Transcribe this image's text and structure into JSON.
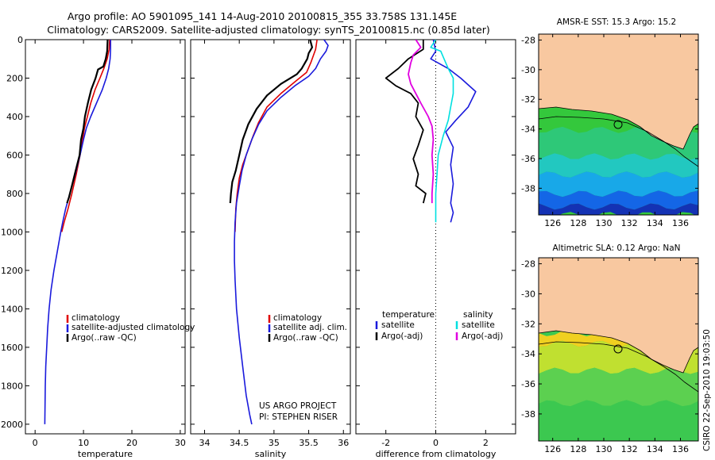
{
  "figure": {
    "title_line1": "Argo profile: AO 5901095_141 14-Aug-2010 20100815_355 33.758S 131.145E",
    "title_line2": "Climatology: CARS2009. Satellite-adjusted climatology: synTS_20100815.nc (0.85d later)",
    "project_line1": "US ARGO PROJECT",
    "project_line2": "PI: STEPHEN RISER",
    "credit": "CSIRO  22-Sep-2010 19:03:50"
  },
  "colors": {
    "climatology": "#e00000",
    "satellite": "#1a1adc",
    "argo": "#000000",
    "argo_sal_diff": "#e000e0",
    "sat_sal_diff": "#00e0e0",
    "land": "#f8c8a0"
  },
  "chart_data": [
    {
      "type": "line",
      "xlabel": "temperature",
      "ylabel": "",
      "xlim": [
        -2,
        31
      ],
      "ylim": [
        2050,
        0
      ],
      "x_ticks": [
        "0",
        "10",
        "20",
        "30"
      ],
      "y_ticks": [
        "0",
        "200",
        "400",
        "600",
        "800",
        "1000",
        "1200",
        "1400",
        "1600",
        "1800",
        "2000"
      ],
      "legend": [
        "climatology",
        "satellite-adjusted climatology",
        "Argo(..raw -QC)"
      ],
      "series": [
        {
          "name": "climatology",
          "points": [
            [
              15.4,
              0
            ],
            [
              15.3,
              50
            ],
            [
              14.9,
              100
            ],
            [
              14.2,
              150
            ],
            [
              13.4,
              200
            ],
            [
              12.4,
              260
            ],
            [
              11.5,
              330
            ],
            [
              10.8,
              400
            ],
            [
              10.2,
              460
            ],
            [
              9.8,
              520
            ],
            [
              9.3,
              600
            ],
            [
              8.5,
              700
            ],
            [
              7.6,
              800
            ],
            [
              6.8,
              880
            ],
            [
              6.0,
              950
            ],
            [
              5.5,
              1000
            ]
          ]
        },
        {
          "name": "satellite-adjusted climatology",
          "points": [
            [
              15.6,
              0
            ],
            [
              15.6,
              50
            ],
            [
              15.5,
              100
            ],
            [
              15.2,
              150
            ],
            [
              14.7,
              200
            ],
            [
              13.9,
              260
            ],
            [
              12.7,
              330
            ],
            [
              11.5,
              400
            ],
            [
              10.6,
              460
            ],
            [
              10.0,
              520
            ],
            [
              9.3,
              600
            ],
            [
              8.3,
              700
            ],
            [
              7.2,
              800
            ],
            [
              6.3,
              880
            ],
            [
              5.7,
              950
            ],
            [
              5.3,
              1000
            ],
            [
              4.6,
              1100
            ],
            [
              3.9,
              1200
            ],
            [
              3.3,
              1300
            ],
            [
              2.9,
              1400
            ],
            [
              2.6,
              1500
            ],
            [
              2.4,
              1600
            ],
            [
              2.2,
              1700
            ],
            [
              2.1,
              1800
            ],
            [
              2.05,
              1900
            ],
            [
              2.0,
              2000
            ]
          ]
        },
        {
          "name": "Argo(..raw -QC)",
          "points": [
            [
              15.0,
              0
            ],
            [
              14.9,
              60
            ],
            [
              14.6,
              100
            ],
            [
              14.1,
              140
            ],
            [
              13.0,
              155
            ],
            [
              12.5,
              200
            ],
            [
              11.6,
              260
            ],
            [
              10.9,
              330
            ],
            [
              10.3,
              400
            ],
            [
              10.0,
              460
            ],
            [
              9.5,
              520
            ],
            [
              9.2,
              600
            ],
            [
              8.4,
              680
            ],
            [
              7.6,
              760
            ],
            [
              7.0,
              820
            ],
            [
              6.6,
              850
            ]
          ]
        }
      ]
    },
    {
      "type": "line",
      "xlabel": "salinity",
      "ylabel": "",
      "xlim": [
        33.8,
        36.1
      ],
      "ylim": [
        2050,
        0
      ],
      "x_ticks": [
        "34",
        "34.5",
        "35",
        "35.5",
        "36"
      ],
      "legend": [
        "climatology",
        "satellite adj. clim.",
        "Argo(..raw -QC)"
      ],
      "series": [
        {
          "name": "climatology",
          "points": [
            [
              35.62,
              0
            ],
            [
              35.6,
              50
            ],
            [
              35.53,
              120
            ],
            [
              35.47,
              170
            ],
            [
              35.3,
              220
            ],
            [
              35.1,
              280
            ],
            [
              34.9,
              350
            ],
            [
              34.78,
              430
            ],
            [
              34.7,
              500
            ],
            [
              34.62,
              580
            ],
            [
              34.55,
              650
            ],
            [
              34.5,
              720
            ],
            [
              34.47,
              800
            ],
            [
              34.45,
              880
            ],
            [
              34.44,
              1000
            ]
          ]
        },
        {
          "name": "satellite adj. clim.",
          "points": [
            [
              35.72,
              0
            ],
            [
              35.78,
              30
            ],
            [
              35.75,
              60
            ],
            [
              35.67,
              100
            ],
            [
              35.6,
              150
            ],
            [
              35.5,
              190
            ],
            [
              35.3,
              240
            ],
            [
              35.1,
              300
            ],
            [
              34.9,
              370
            ],
            [
              34.78,
              440
            ],
            [
              34.68,
              520
            ],
            [
              34.6,
              600
            ],
            [
              34.54,
              680
            ],
            [
              34.5,
              760
            ],
            [
              34.46,
              850
            ],
            [
              34.44,
              950
            ],
            [
              34.43,
              1050
            ],
            [
              34.43,
              1150
            ],
            [
              34.44,
              1250
            ],
            [
              34.46,
              1400
            ],
            [
              34.5,
              1550
            ],
            [
              34.55,
              1700
            ],
            [
              34.6,
              1850
            ],
            [
              34.65,
              1950
            ],
            [
              34.68,
              2000
            ]
          ]
        },
        {
          "name": "Argo(..raw -QC)",
          "points": [
            [
              35.52,
              0
            ],
            [
              35.55,
              40
            ],
            [
              35.5,
              70
            ],
            [
              35.48,
              100
            ],
            [
              35.4,
              150
            ],
            [
              35.33,
              180
            ],
            [
              35.1,
              230
            ],
            [
              34.9,
              290
            ],
            [
              34.75,
              360
            ],
            [
              34.63,
              440
            ],
            [
              34.55,
              520
            ],
            [
              34.5,
              600
            ],
            [
              34.45,
              680
            ],
            [
              34.4,
              740
            ],
            [
              34.38,
              800
            ],
            [
              34.37,
              850
            ]
          ]
        }
      ]
    },
    {
      "type": "line",
      "xlabel": "difference from climatology",
      "ylabel": "",
      "xlim": [
        -3.2,
        3.2
      ],
      "ylim": [
        2050,
        0
      ],
      "x_ticks": [
        "-2",
        "0",
        "2"
      ],
      "legend_groups": [
        {
          "title": "temperature",
          "items": [
            "satellite",
            "Argo(-adj)"
          ]
        },
        {
          "title": "salinity",
          "items": [
            "satellite",
            "Argo(-adj)"
          ]
        }
      ],
      "series": [
        {
          "name": "temperature satellite",
          "points": [
            [
              -0.1,
              0
            ],
            [
              0.0,
              60
            ],
            [
              -0.2,
              100
            ],
            [
              0.5,
              150
            ],
            [
              1.0,
              200
            ],
            [
              1.6,
              270
            ],
            [
              1.3,
              350
            ],
            [
              0.8,
              420
            ],
            [
              0.4,
              480
            ],
            [
              0.7,
              560
            ],
            [
              0.6,
              650
            ],
            [
              0.7,
              750
            ],
            [
              0.6,
              850
            ],
            [
              0.7,
              900
            ],
            [
              0.6,
              950
            ]
          ]
        },
        {
          "name": "salinity satellite",
          "points": [
            [
              0.0,
              0
            ],
            [
              -0.2,
              40
            ],
            [
              0.2,
              60
            ],
            [
              0.3,
              90
            ],
            [
              0.5,
              150
            ],
            [
              0.7,
              200
            ],
            [
              0.7,
              280
            ],
            [
              0.6,
              350
            ],
            [
              0.5,
              420
            ],
            [
              0.3,
              500
            ],
            [
              0.1,
              600
            ],
            [
              0.05,
              700
            ],
            [
              0.0,
              800
            ],
            [
              0.0,
              900
            ],
            [
              0.0,
              950
            ]
          ]
        },
        {
          "name": "temperature Argo(-adj)",
          "points": [
            [
              -0.5,
              0
            ],
            [
              -0.5,
              50
            ],
            [
              -1.1,
              100
            ],
            [
              -1.5,
              150
            ],
            [
              -1.8,
              180
            ],
            [
              -2.0,
              200
            ],
            [
              -1.6,
              240
            ],
            [
              -1.0,
              280
            ],
            [
              -0.7,
              330
            ],
            [
              -0.8,
              400
            ],
            [
              -0.5,
              470
            ],
            [
              -0.7,
              550
            ],
            [
              -0.9,
              620
            ],
            [
              -0.7,
              700
            ],
            [
              -0.8,
              760
            ],
            [
              -0.4,
              800
            ],
            [
              -0.5,
              850
            ]
          ]
        },
        {
          "name": "salinity Argo(-adj)",
          "points": [
            [
              -0.8,
              0
            ],
            [
              -0.6,
              40
            ],
            [
              -0.9,
              80
            ],
            [
              -1.0,
              120
            ],
            [
              -1.1,
              180
            ],
            [
              -1.0,
              230
            ],
            [
              -0.8,
              280
            ],
            [
              -0.6,
              330
            ],
            [
              -0.3,
              400
            ],
            [
              -0.15,
              450
            ],
            [
              -0.1,
              520
            ],
            [
              -0.15,
              600
            ],
            [
              -0.1,
              700
            ],
            [
              -0.15,
              800
            ],
            [
              -0.15,
              850
            ]
          ]
        }
      ]
    }
  ],
  "maps": [
    {
      "title": "AMSR-E SST: 15.3 Argo: 15.2",
      "lat_ticks": [
        "-28",
        "-30",
        "-32",
        "-34",
        "-36",
        "-38"
      ],
      "lon_ticks": [
        "126",
        "128",
        "130",
        "132",
        "134",
        "136"
      ],
      "bands": [
        {
          "color": "#34c83c",
          "from": 0.0,
          "to": 0.2
        },
        {
          "color": "#2ec878",
          "from": 0.2,
          "to": 0.45
        },
        {
          "color": "#22c8c0",
          "from": 0.45,
          "to": 0.62
        },
        {
          "color": "#18a8e8",
          "from": 0.62,
          "to": 0.8
        },
        {
          "color": "#1466e6",
          "from": 0.8,
          "to": 0.92
        },
        {
          "color": "#1432b4",
          "from": 0.92,
          "to": 1.0
        }
      ]
    },
    {
      "title": "Altimetric SLA: 0.12 Argo: NaN",
      "lat_ticks": [
        "-28",
        "-30",
        "-32",
        "-34",
        "-36",
        "-38"
      ],
      "lon_ticks": [
        "126",
        "128",
        "130",
        "132",
        "134",
        "136"
      ],
      "bands": [
        {
          "color": "#f0d020",
          "from": 0.0,
          "to": 0.1
        },
        {
          "color": "#c0e030",
          "from": 0.1,
          "to": 0.35
        },
        {
          "color": "#5cd050",
          "from": 0.35,
          "to": 0.65
        },
        {
          "color": "#3cc850",
          "from": 0.65,
          "to": 1.0
        }
      ]
    }
  ]
}
